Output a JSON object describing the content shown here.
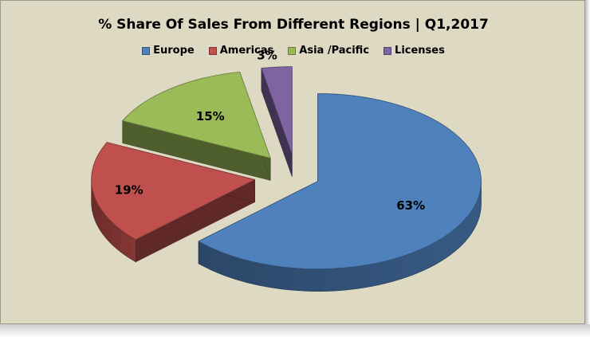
{
  "chart_data": {
    "type": "pie",
    "title": "% Share Of Sales From Different Regions | Q1,2017",
    "categories": [
      "Europe",
      "Americas",
      "Asia /Pacific",
      "Licenses"
    ],
    "values": [
      63,
      19,
      15,
      3
    ],
    "labels": [
      "63%",
      "19%",
      "15%",
      "3%"
    ],
    "colors": {
      "Europe": "#4f81bd",
      "Americas": "#c0504d",
      "Asia /Pacific": "#9bbb59",
      "Licenses": "#8064a2"
    },
    "legend_position": "top",
    "style": "3d-exploded"
  }
}
